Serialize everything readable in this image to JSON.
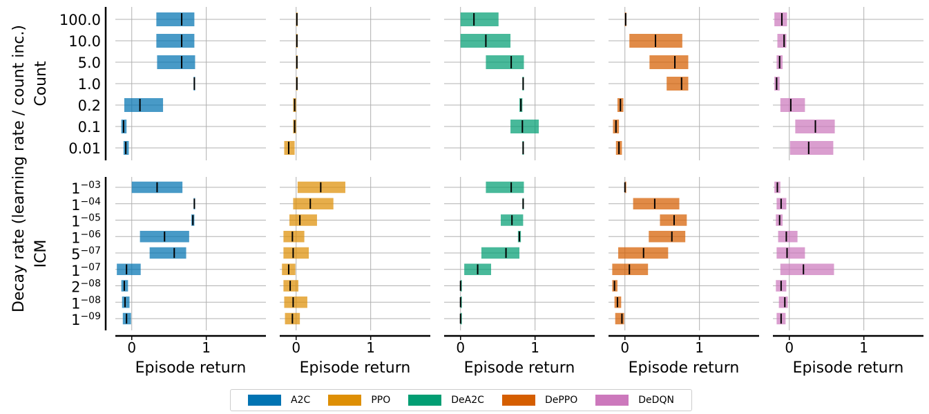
{
  "ylabel": "Decay rate (learning rate / count inc.)",
  "xlabel": "Episode return",
  "x_ticks": [
    "0",
    "1"
  ],
  "legend": [
    {
      "name": "A2C",
      "color": "#0173b2"
    },
    {
      "name": "PPO",
      "color": "#de8f05"
    },
    {
      "name": "DeA2C",
      "color": "#029e73"
    },
    {
      "name": "DePPO",
      "color": "#d55e00"
    },
    {
      "name": "DeDQN",
      "color": "#cc78bc"
    }
  ],
  "chart_data": [
    {
      "type": "bar",
      "group": "Count",
      "categories": [
        "100.0",
        "10.0",
        "5.0",
        "1.0",
        "0.2",
        "0.1",
        "0.01"
      ],
      "xlim": [
        -0.22,
        1.8
      ],
      "series": [
        {
          "name": "A2C",
          "low": [
            0.33,
            0.33,
            0.34,
            0.83,
            -0.1,
            -0.14,
            -0.11
          ],
          "high": [
            0.84,
            0.84,
            0.85,
            0.85,
            0.42,
            -0.07,
            -0.04
          ],
          "mean": [
            0.67,
            0.67,
            0.67,
            0.84,
            0.11,
            -0.11,
            -0.08
          ]
        },
        {
          "name": "PPO",
          "low": [
            0.0,
            0.0,
            0.0,
            0.0,
            -0.04,
            -0.04,
            -0.16
          ],
          "high": [
            0.02,
            0.02,
            0.02,
            0.02,
            0.0,
            0.0,
            -0.02
          ],
          "mean": [
            0.01,
            0.01,
            0.01,
            0.01,
            -0.02,
            -0.02,
            -0.1
          ]
        },
        {
          "name": "DeA2C",
          "low": [
            0.0,
            0.0,
            0.34,
            0.83,
            0.79,
            0.67,
            0.83
          ],
          "high": [
            0.51,
            0.67,
            0.85,
            0.85,
            0.83,
            1.05,
            0.85
          ],
          "mean": [
            0.18,
            0.34,
            0.68,
            0.84,
            0.81,
            0.83,
            0.84
          ]
        },
        {
          "name": "DePPO",
          "low": [
            0.0,
            0.06,
            0.33,
            0.56,
            -0.1,
            -0.16,
            -0.12
          ],
          "high": [
            0.02,
            0.77,
            0.85,
            0.85,
            -0.02,
            -0.08,
            -0.04
          ],
          "mean": [
            0.01,
            0.41,
            0.67,
            0.76,
            -0.06,
            -0.12,
            -0.08
          ]
        },
        {
          "name": "DeDQN",
          "low": [
            -0.2,
            -0.16,
            -0.17,
            -0.2,
            -0.12,
            0.08,
            0.01
          ],
          "high": [
            -0.03,
            -0.04,
            -0.09,
            -0.13,
            0.21,
            0.61,
            0.59
          ],
          "mean": [
            -0.1,
            -0.07,
            -0.13,
            -0.17,
            0.02,
            0.35,
            0.26
          ]
        }
      ]
    },
    {
      "type": "bar",
      "group": "ICM",
      "categories": [
        {
          "base": "1",
          "exp": "−03"
        },
        {
          "base": "1",
          "exp": "−04"
        },
        {
          "base": "1",
          "exp": "−05"
        },
        {
          "base": "1",
          "exp": "−06"
        },
        {
          "base": "5",
          "exp": "−07"
        },
        {
          "base": "1",
          "exp": "−07"
        },
        {
          "base": "2",
          "exp": "−08"
        },
        {
          "base": "1",
          "exp": "−08"
        },
        {
          "base": "1",
          "exp": "−09"
        }
      ],
      "xlim": [
        -0.22,
        1.8
      ],
      "series": [
        {
          "name": "A2C",
          "low": [
            0.0,
            0.83,
            0.8,
            0.11,
            0.24,
            -0.2,
            -0.14,
            -0.13,
            -0.12
          ],
          "high": [
            0.68,
            0.85,
            0.84,
            0.77,
            0.73,
            0.12,
            -0.05,
            -0.03,
            -0.01
          ],
          "mean": [
            0.34,
            0.84,
            0.82,
            0.44,
            0.57,
            -0.07,
            -0.1,
            -0.09,
            -0.07
          ]
        },
        {
          "name": "PPO",
          "low": [
            0.02,
            -0.04,
            -0.09,
            -0.17,
            -0.17,
            -0.19,
            -0.17,
            -0.16,
            -0.15
          ],
          "high": [
            0.66,
            0.5,
            0.28,
            0.11,
            0.17,
            -0.01,
            0.03,
            0.15,
            0.05
          ],
          "mean": [
            0.33,
            0.19,
            0.05,
            -0.05,
            -0.04,
            -0.1,
            -0.08,
            -0.04,
            -0.05
          ]
        },
        {
          "name": "DeA2C",
          "low": [
            0.34,
            0.83,
            0.54,
            0.77,
            0.28,
            0.05,
            0.0,
            0.0,
            0.0
          ],
          "high": [
            0.85,
            0.85,
            0.84,
            0.81,
            0.79,
            0.41,
            0.01,
            0.01,
            0.01
          ],
          "mean": [
            0.68,
            0.84,
            0.69,
            0.79,
            0.61,
            0.23,
            0.0,
            0.0,
            0.0
          ]
        },
        {
          "name": "DePPO",
          "low": [
            0.0,
            0.11,
            0.47,
            0.32,
            -0.09,
            -0.17,
            -0.17,
            -0.14,
            -0.13
          ],
          "high": [
            0.01,
            0.73,
            0.83,
            0.81,
            0.58,
            0.31,
            -0.1,
            -0.05,
            -0.01
          ],
          "mean": [
            0.0,
            0.4,
            0.66,
            0.63,
            0.25,
            0.06,
            -0.14,
            -0.1,
            -0.04
          ]
        },
        {
          "name": "DeDQN",
          "low": [
            -0.2,
            -0.17,
            -0.18,
            -0.15,
            -0.17,
            -0.12,
            -0.18,
            -0.14,
            -0.17
          ],
          "high": [
            -0.12,
            -0.04,
            -0.09,
            0.11,
            0.21,
            0.6,
            -0.04,
            -0.02,
            -0.05
          ],
          "mean": [
            -0.16,
            -0.11,
            -0.13,
            -0.04,
            -0.03,
            0.19,
            -0.11,
            -0.06,
            -0.11
          ]
        }
      ]
    }
  ]
}
